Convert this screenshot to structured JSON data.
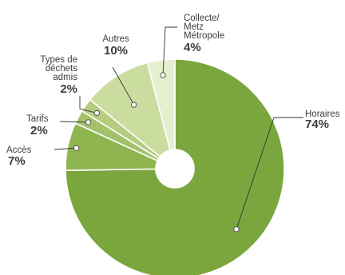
{
  "chart_data": {
    "type": "pie",
    "donut": true,
    "title": "",
    "slices": [
      {
        "label": "Horaires",
        "value": 74,
        "value_label": "74%",
        "color": "#7aa63d"
      },
      {
        "label": "Accès",
        "value": 7,
        "value_label": "7%",
        "color": "#8fb550"
      },
      {
        "label": "Tarifs",
        "value": 2,
        "value_label": "2%",
        "color": "#a3c168"
      },
      {
        "label": "Types de déchets admis",
        "value": 2,
        "value_label": "2%",
        "color": "#b6cd81"
      },
      {
        "label": "Autres",
        "value": 10,
        "value_label": "10%",
        "color": "#cbdc9f"
      },
      {
        "label": "Collecte/ Metz Métropole",
        "value": 4,
        "value_label": "4%",
        "color": "#e6eed0"
      }
    ],
    "label_lines": {
      "Horaires": [
        "Horaires"
      ],
      "Accès": [
        "Accès"
      ],
      "Tarifs": [
        "Tarifs"
      ],
      "Types de déchets admis": [
        "Types de",
        "déchets",
        "admis"
      ],
      "Autres": [
        "Autres"
      ],
      "Collecte/ Metz Métropole": [
        "Collecte/",
        "Metz",
        "Métropole"
      ]
    },
    "start_angle_deg": 0,
    "direction": "clockwise",
    "legend": "none"
  }
}
